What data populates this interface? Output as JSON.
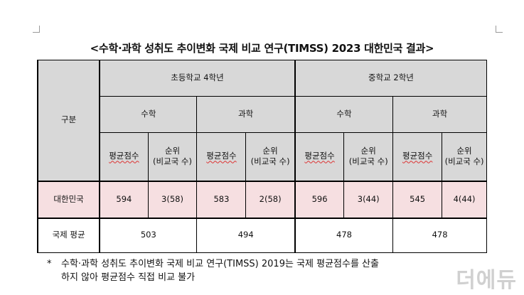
{
  "title": "<수학·과학 성취도 추이변화 국제 비교 연구(TIMSS) 2023 대한민국 결과>",
  "table": {
    "row_label_header": "구분",
    "groups": [
      {
        "name": "초등학교 4학년",
        "subjects": [
          {
            "name": "수학",
            "avg_label": "평균점수",
            "rank_label_1": "순위",
            "rank_label_2": "(비교국 수)",
            "korea_avg": "594",
            "korea_rank": "3(58)",
            "intl_avg": "503"
          },
          {
            "name": "과학",
            "avg_label": "평균점수",
            "rank_label_1": "순위",
            "rank_label_2": "(비교국 수)",
            "korea_avg": "583",
            "korea_rank": "2(58)",
            "intl_avg": "494"
          }
        ]
      },
      {
        "name": "중학교 2학년",
        "subjects": [
          {
            "name": "수학",
            "avg_label": "평균점수",
            "rank_label_1": "순위",
            "rank_label_2": "(비교국 수)",
            "korea_avg": "596",
            "korea_rank": "3(44)",
            "intl_avg": "478"
          },
          {
            "name": "과학",
            "avg_label": "평균점수",
            "rank_label_1": "순위",
            "rank_label_2": "(비교국 수)",
            "korea_avg": "545",
            "korea_rank": "4(44)",
            "intl_avg": "478"
          }
        ]
      }
    ],
    "rows": {
      "korea_label": "대한민국",
      "intl_label": "국제 평균"
    }
  },
  "footnote": {
    "mark": "*",
    "line1": "수학·과학 성취도 추이변화 국제 비교 연구(TIMSS) 2019는 국제 평균점수를 산출",
    "line2": "하지 않아 평균점수 직접 비교 불가"
  },
  "watermark": "더에듀",
  "colors": {
    "header_bg": "#d8d8d8",
    "korea_row_bg": "#f6dfe1"
  }
}
